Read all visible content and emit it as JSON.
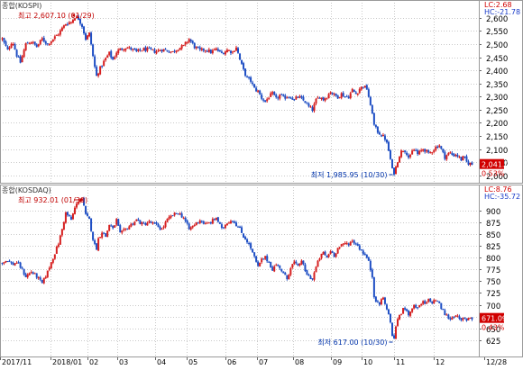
{
  "chart_data": [
    {
      "type": "candlestick",
      "panel": "kospi",
      "title": "종합(KOSPI)",
      "status_lines": [
        "LC:2.68",
        "HC:-21.78"
      ],
      "high_annotation": "최고 2,607.10 (01/29)",
      "low_annotation": "최저 1,985.95 (10/30)",
      "last_value": "2,041.04",
      "change_pct": "0.53%",
      "ylim": [
        1985,
        2610
      ],
      "y_ticks": [
        2600,
        2550,
        2500,
        2450,
        2400,
        2350,
        2300,
        2250,
        2200,
        2150,
        2100,
        2050,
        2000
      ],
      "y_tick_labels": [
        "2,600",
        "2,550",
        "2,500",
        "2,450",
        "2,400",
        "2,350",
        "2,300",
        "2,250",
        "2,200",
        "2,150",
        "2,100",
        "2,050",
        "2,000"
      ],
      "anchors": [
        [
          0,
          2520
        ],
        [
          6,
          2475
        ],
        [
          11,
          2515
        ],
        [
          16,
          2458
        ],
        [
          20,
          2430
        ],
        [
          26,
          2500
        ],
        [
          32,
          2510
        ],
        [
          38,
          2490
        ],
        [
          44,
          2520
        ],
        [
          50,
          2500
        ],
        [
          56,
          2520
        ],
        [
          62,
          2540
        ],
        [
          66,
          2560
        ],
        [
          70,
          2578
        ],
        [
          76,
          2585
        ],
        [
          80,
          2605
        ],
        [
          84,
          2598
        ],
        [
          88,
          2570
        ],
        [
          92,
          2520
        ],
        [
          96,
          2540
        ],
        [
          98,
          2500
        ],
        [
          101,
          2430
        ],
        [
          104,
          2378
        ],
        [
          106,
          2395
        ],
        [
          110,
          2420
        ],
        [
          114,
          2445
        ],
        [
          118,
          2465
        ],
        [
          122,
          2440
        ],
        [
          126,
          2470
        ],
        [
          130,
          2480
        ],
        [
          136,
          2488
        ],
        [
          142,
          2482
        ],
        [
          148,
          2470
        ],
        [
          155,
          2480
        ],
        [
          162,
          2478
        ],
        [
          169,
          2472
        ],
        [
          176,
          2480
        ],
        [
          182,
          2475
        ],
        [
          188,
          2470
        ],
        [
          194,
          2485
        ],
        [
          200,
          2492
        ],
        [
          206,
          2520
        ],
        [
          212,
          2490
        ],
        [
          218,
          2475
        ],
        [
          224,
          2480
        ],
        [
          230,
          2470
        ],
        [
          236,
          2480
        ],
        [
          242,
          2465
        ],
        [
          248,
          2478
        ],
        [
          254,
          2470
        ],
        [
          258,
          2490
        ],
        [
          262,
          2440
        ],
        [
          266,
          2400
        ],
        [
          270,
          2370
        ],
        [
          274,
          2360
        ],
        [
          278,
          2330
        ],
        [
          282,
          2320
        ],
        [
          286,
          2295
        ],
        [
          290,
          2280
        ],
        [
          294,
          2300
        ],
        [
          298,
          2310
        ],
        [
          302,
          2290
        ],
        [
          306,
          2305
        ],
        [
          310,
          2295
        ],
        [
          314,
          2300
        ],
        [
          318,
          2300
        ],
        [
          322,
          2285
        ],
        [
          326,
          2300
        ],
        [
          330,
          2290
        ],
        [
          334,
          2280
        ],
        [
          338,
          2260
        ],
        [
          342,
          2250
        ],
        [
          346,
          2285
        ],
        [
          350,
          2300
        ],
        [
          354,
          2290
        ],
        [
          358,
          2300
        ],
        [
          362,
          2320
        ],
        [
          366,
          2305
        ],
        [
          370,
          2300
        ],
        [
          374,
          2310
        ],
        [
          378,
          2300
        ],
        [
          382,
          2300
        ],
        [
          386,
          2325
        ],
        [
          390,
          2310
        ],
        [
          394,
          2330
        ],
        [
          398,
          2340
        ],
        [
          402,
          2330
        ],
        [
          404,
          2300
        ],
        [
          406,
          2260
        ],
        [
          408,
          2240
        ],
        [
          410,
          2190
        ],
        [
          413,
          2170
        ],
        [
          416,
          2160
        ],
        [
          419,
          2150
        ],
        [
          422,
          2140
        ],
        [
          425,
          2110
        ],
        [
          428,
          2060
        ],
        [
          431,
          2000
        ],
        [
          434,
          2030
        ],
        [
          437,
          2070
        ],
        [
          440,
          2090
        ],
        [
          443,
          2100
        ],
        [
          446,
          2085
        ],
        [
          449,
          2060
        ],
        [
          452,
          2090
        ],
        [
          455,
          2100
        ],
        [
          458,
          2080
        ],
        [
          461,
          2090
        ],
        [
          464,
          2100
        ],
        [
          467,
          2095
        ],
        [
          470,
          2080
        ],
        [
          473,
          2090
        ],
        [
          476,
          2100
        ],
        [
          479,
          2110
        ],
        [
          482,
          2115
        ],
        [
          485,
          2090
        ],
        [
          488,
          2070
        ],
        [
          491,
          2080
        ],
        [
          494,
          2085
        ],
        [
          497,
          2075
        ],
        [
          500,
          2080
        ],
        [
          503,
          2070
        ],
        [
          506,
          2060
        ],
        [
          509,
          2070
        ],
        [
          512,
          2050
        ],
        [
          515,
          2045
        ],
        [
          518,
          2041
        ]
      ],
      "x_ticks": [
        "2017/11",
        "2018/01",
        "02",
        "03",
        "04",
        "05",
        "06",
        "07",
        "08",
        "09",
        "10",
        "11",
        "12",
        "12/28"
      ]
    },
    {
      "type": "candlestick",
      "panel": "kosdaq",
      "title": "종합(KOSDAQ)",
      "status_lines": [
        "LC:8.76",
        "HC:-35.72"
      ],
      "high_annotation": "최고 932.01 (01/30)",
      "low_annotation": "최저 617.00 (10/30)",
      "last_value": "671.09",
      "change_pct": "0.43%",
      "ylim": [
        617,
        932
      ],
      "y_ticks": [
        900,
        875,
        850,
        825,
        800,
        775,
        750,
        725,
        700,
        675,
        650,
        625
      ],
      "y_tick_labels": [
        "900",
        "875",
        "850",
        "825",
        "800",
        "775",
        "750",
        "725",
        "700",
        "675",
        "650",
        "625"
      ],
      "anchors": [
        [
          0,
          790
        ],
        [
          6,
          795
        ],
        [
          11,
          785
        ],
        [
          16,
          790
        ],
        [
          20,
          780
        ],
        [
          26,
          760
        ],
        [
          32,
          770
        ],
        [
          38,
          760
        ],
        [
          44,
          745
        ],
        [
          50,
          770
        ],
        [
          56,
          800
        ],
        [
          62,
          830
        ],
        [
          66,
          860
        ],
        [
          70,
          895
        ],
        [
          76,
          880
        ],
        [
          80,
          905
        ],
        [
          84,
          920
        ],
        [
          88,
          925
        ],
        [
          92,
          890
        ],
        [
          96,
          880
        ],
        [
          98,
          860
        ],
        [
          101,
          830
        ],
        [
          104,
          820
        ],
        [
          106,
          840
        ],
        [
          110,
          855
        ],
        [
          114,
          845
        ],
        [
          118,
          870
        ],
        [
          122,
          860
        ],
        [
          126,
          880
        ],
        [
          130,
          850
        ],
        [
          136,
          860
        ],
        [
          142,
          870
        ],
        [
          148,
          880
        ],
        [
          155,
          870
        ],
        [
          162,
          875
        ],
        [
          169,
          870
        ],
        [
          176,
          860
        ],
        [
          182,
          880
        ],
        [
          188,
          890
        ],
        [
          194,
          895
        ],
        [
          200,
          885
        ],
        [
          206,
          860
        ],
        [
          212,
          870
        ],
        [
          218,
          880
        ],
        [
          224,
          870
        ],
        [
          230,
          875
        ],
        [
          236,
          885
        ],
        [
          242,
          860
        ],
        [
          248,
          875
        ],
        [
          254,
          880
        ],
        [
          258,
          870
        ],
        [
          262,
          860
        ],
        [
          266,
          845
        ],
        [
          270,
          835
        ],
        [
          274,
          820
        ],
        [
          278,
          800
        ],
        [
          282,
          780
        ],
        [
          286,
          795
        ],
        [
          290,
          800
        ],
        [
          294,
          790
        ],
        [
          298,
          775
        ],
        [
          302,
          785
        ],
        [
          306,
          780
        ],
        [
          310,
          765
        ],
        [
          314,
          755
        ],
        [
          318,
          780
        ],
        [
          322,
          790
        ],
        [
          326,
          780
        ],
        [
          330,
          795
        ],
        [
          334,
          770
        ],
        [
          338,
          760
        ],
        [
          342,
          755
        ],
        [
          346,
          780
        ],
        [
          350,
          800
        ],
        [
          354,
          810
        ],
        [
          358,
          800
        ],
        [
          362,
          815
        ],
        [
          366,
          805
        ],
        [
          370,
          820
        ],
        [
          374,
          825
        ],
        [
          378,
          830
        ],
        [
          382,
          830
        ],
        [
          386,
          835
        ],
        [
          390,
          830
        ],
        [
          394,
          820
        ],
        [
          398,
          810
        ],
        [
          402,
          800
        ],
        [
          404,
          790
        ],
        [
          406,
          775
        ],
        [
          408,
          760
        ],
        [
          410,
          720
        ],
        [
          413,
          705
        ],
        [
          416,
          700
        ],
        [
          419,
          720
        ],
        [
          422,
          700
        ],
        [
          425,
          690
        ],
        [
          428,
          660
        ],
        [
          431,
          622
        ],
        [
          434,
          650
        ],
        [
          437,
          680
        ],
        [
          440,
          680
        ],
        [
          443,
          695
        ],
        [
          446,
          690
        ],
        [
          449,
          675
        ],
        [
          452,
          695
        ],
        [
          455,
          700
        ],
        [
          458,
          690
        ],
        [
          461,
          700
        ],
        [
          464,
          705
        ],
        [
          467,
          700
        ],
        [
          470,
          710
        ],
        [
          473,
          705
        ],
        [
          476,
          708
        ],
        [
          479,
          712
        ],
        [
          482,
          700
        ],
        [
          485,
          690
        ],
        [
          488,
          680
        ],
        [
          491,
          675
        ],
        [
          494,
          670
        ],
        [
          497,
          675
        ],
        [
          500,
          680
        ],
        [
          503,
          670
        ],
        [
          506,
          665
        ],
        [
          509,
          672
        ],
        [
          512,
          668
        ],
        [
          515,
          675
        ],
        [
          518,
          671
        ]
      ],
      "x_ticks": [
        "2017/11",
        "2018/01",
        "02",
        "03",
        "04",
        "05",
        "06",
        "07",
        "08",
        "09",
        "10",
        "11",
        "12",
        "12/28"
      ]
    }
  ],
  "colors": {
    "up": "#d62020",
    "down": "#1f4fc4",
    "grid": "#c9c9c9",
    "axis_text": "#000000",
    "annotation_text": "#c00000",
    "low_annotation_text": "#0033aa",
    "price_box_bg": "#d10000",
    "pct_text": "#d10000",
    "status_red": "#d10000",
    "status_blue": "#1a3cc8"
  }
}
